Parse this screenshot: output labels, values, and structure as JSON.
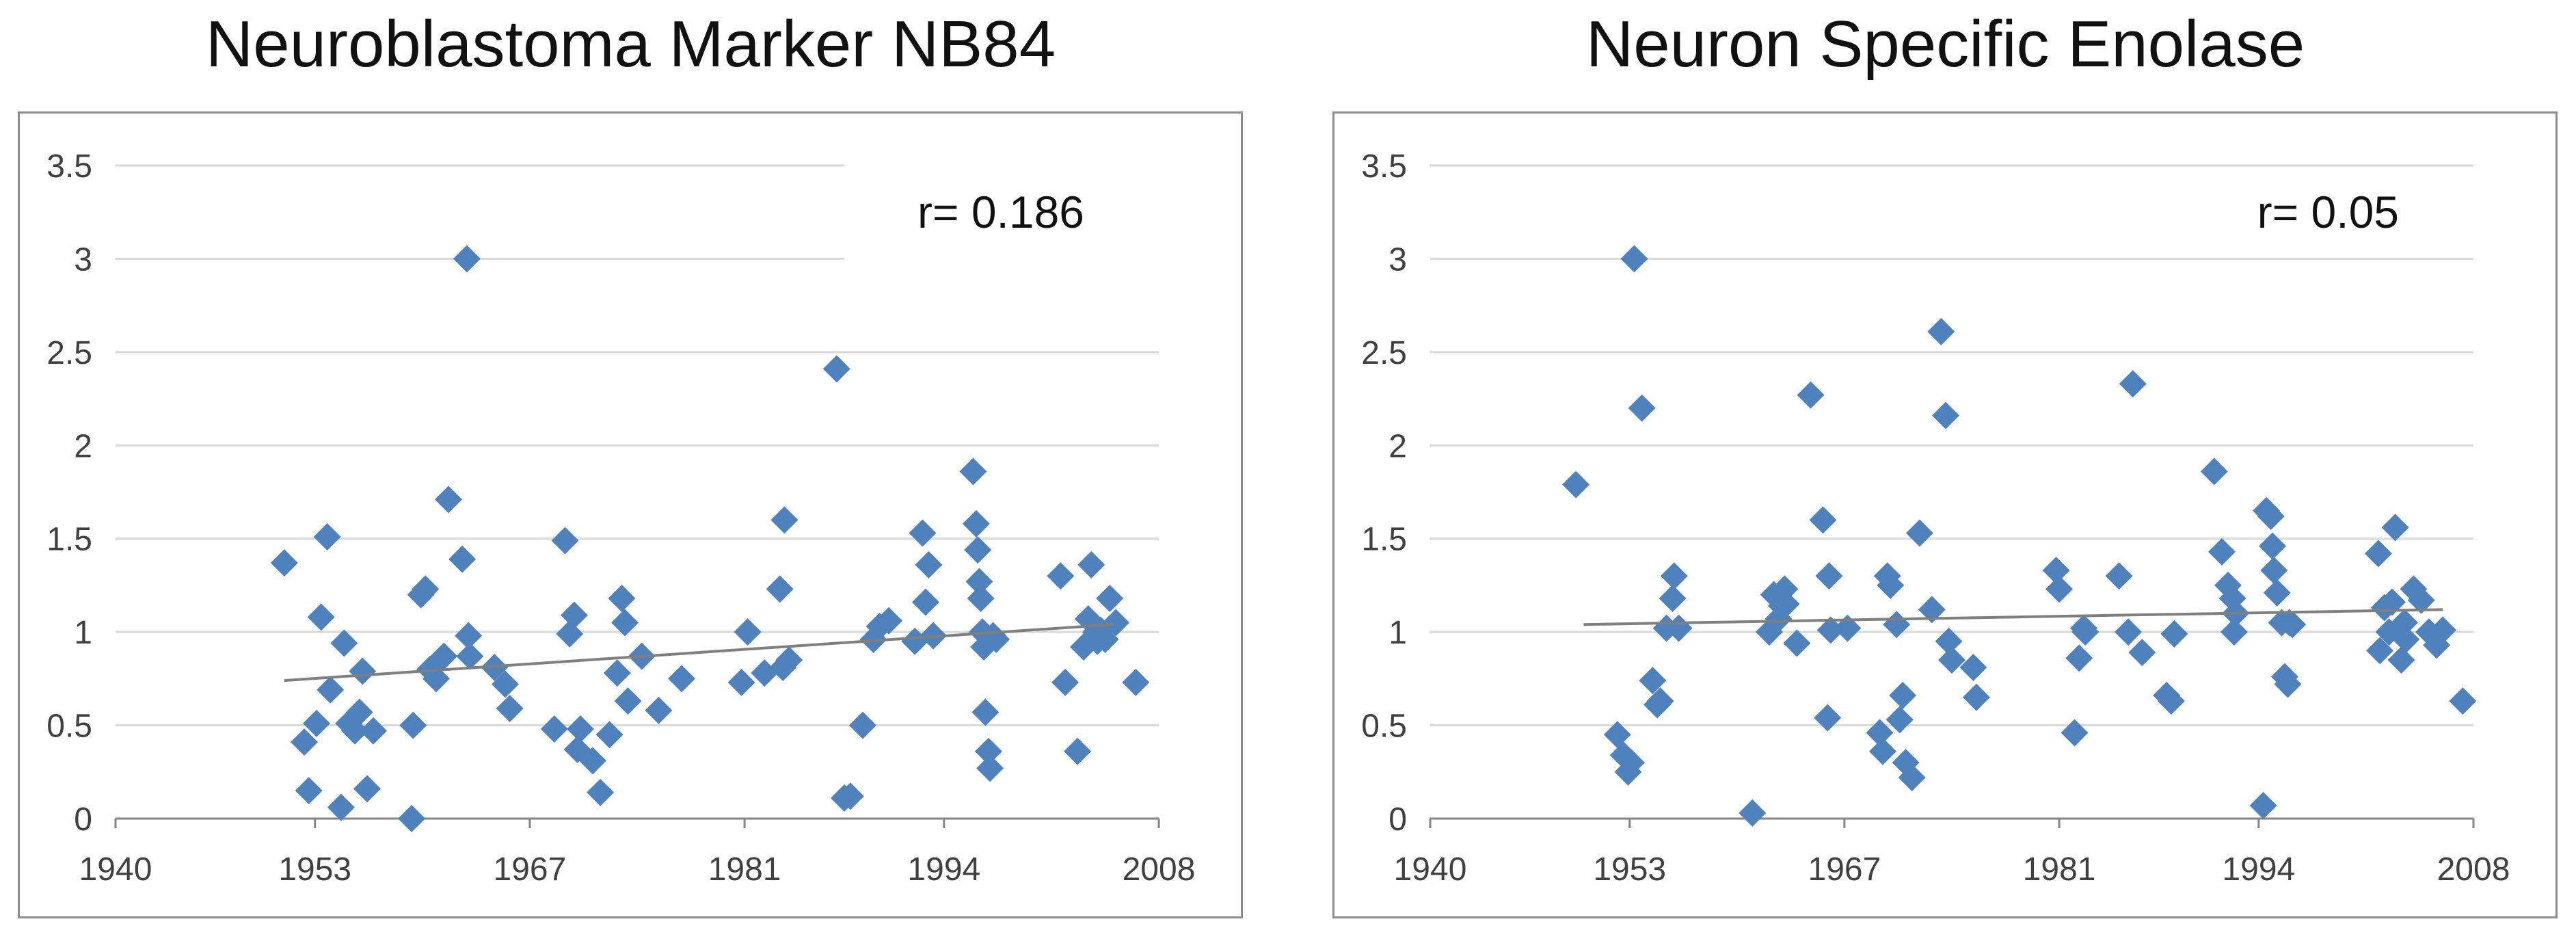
{
  "chart_data": [
    {
      "type": "scatter",
      "title": "Neuroblastoma Marker NB84",
      "annotation": "r= 0.186",
      "xlim": [
        1940,
        2008
      ],
      "ylim": [
        0,
        3.5
      ],
      "xticks": [
        "1940",
        "1953",
        "1967",
        "1981",
        "1994",
        "2008"
      ],
      "yticks": [
        "0",
        "0.5",
        "1",
        "1.5",
        "2",
        "2.5",
        "3",
        "3.5"
      ],
      "trendline": {
        "x": [
          1951,
          2005
        ],
        "y": [
          0.74,
          1.04
        ]
      },
      "marker_color": "#4f81bd",
      "line_color": "#7f7f7f",
      "x": [
        1951.0,
        1952.3,
        1952.6,
        1953.1,
        1953.4,
        1953.8,
        1954.0,
        1954.7,
        1954.9,
        1955.2,
        1955.6,
        1955.9,
        1956.1,
        1956.4,
        1956.8,
        1959.3,
        1959.4,
        1959.9,
        1960.2,
        1960.5,
        1960.9,
        1961.4,
        1961.7,
        1962.6,
        1962.9,
        1963.0,
        1963.1,
        1964.7,
        1965.4,
        1965.7,
        1968.6,
        1969.3,
        1969.6,
        1969.9,
        1970.1,
        1970.3,
        1971.1,
        1971.6,
        1972.2,
        1972.7,
        1973.0,
        1973.2,
        1973.4,
        1974.3,
        1975.4,
        1976.9,
        1980.8,
        1981.2,
        1982.3,
        1983.3,
        1983.5,
        1983.6,
        1983.9,
        1987.0,
        1987.5,
        1987.9,
        1988.7,
        1989.4,
        1989.8,
        1990.4,
        1992.1,
        1992.6,
        1992.8,
        1993.0,
        1993.3,
        1995.9,
        1996.1,
        1996.2,
        1996.3,
        1996.4,
        1996.5,
        1996.6,
        1996.7,
        1996.9,
        1997.0,
        1997.2,
        1997.4,
        2001.6,
        2001.9,
        2002.7,
        2003.1,
        2003.4,
        2003.6,
        2003.9,
        2004.0,
        2004.2,
        2004.5,
        2004.8,
        2005.2,
        2006.5
      ],
      "y": [
        1.37,
        0.41,
        0.15,
        0.51,
        1.08,
        1.51,
        0.69,
        0.06,
        0.94,
        0.51,
        0.47,
        0.57,
        0.79,
        0.16,
        0.47,
        0.0,
        0.5,
        1.2,
        1.23,
        0.8,
        0.75,
        0.87,
        1.71,
        1.39,
        3.0,
        0.98,
        0.87,
        0.81,
        0.72,
        0.59,
        0.48,
        1.49,
        0.99,
        1.09,
        0.37,
        0.48,
        0.31,
        0.14,
        0.45,
        0.78,
        1.18,
        1.05,
        0.63,
        0.87,
        0.58,
        0.75,
        0.73,
        1.0,
        0.78,
        1.23,
        0.81,
        1.6,
        0.85,
        2.41,
        0.11,
        0.12,
        0.5,
        0.96,
        1.03,
        1.06,
        0.95,
        1.53,
        1.16,
        1.36,
        0.98,
        1.86,
        1.58,
        1.44,
        1.27,
        1.18,
        1.0,
        0.92,
        0.57,
        0.36,
        0.27,
        0.98,
        0.96,
        1.3,
        0.73,
        0.36,
        0.92,
        1.07,
        1.36,
        1.0,
        0.95,
        1.01,
        0.96,
        1.18,
        1.05,
        0.73
      ]
    },
    {
      "type": "scatter",
      "title": "Neuron Specific Enolase",
      "annotation": "r= 0.05",
      "xlim": [
        1940,
        2008
      ],
      "ylim": [
        0,
        3.5
      ],
      "xticks": [
        "1940",
        "1953",
        "1967",
        "1981",
        "1994",
        "2008"
      ],
      "yticks": [
        "0",
        "0.5",
        "1",
        "1.5",
        "2",
        "2.5",
        "3",
        "3.5"
      ],
      "trendline": {
        "x": [
          1950,
          2006
        ],
        "y": [
          1.04,
          1.12
        ]
      },
      "marker_color": "#4f81bd",
      "line_color": "#7f7f7f",
      "x": [
        1949.5,
        1952.2,
        1952.6,
        1952.9,
        1953.1,
        1953.3,
        1953.8,
        1954.5,
        1954.8,
        1955.0,
        1955.4,
        1955.8,
        1955.9,
        1956.2,
        1961.0,
        1962.1,
        1962.4,
        1962.7,
        1962.9,
        1963.1,
        1963.2,
        1963.9,
        1964.8,
        1965.6,
        1965.9,
        1966.0,
        1966.1,
        1967.2,
        1969.3,
        1969.5,
        1969.8,
        1970.0,
        1970.4,
        1970.6,
        1970.8,
        1971.0,
        1971.4,
        1971.9,
        1972.7,
        1973.3,
        1973.6,
        1973.8,
        1974.0,
        1975.4,
        1975.6,
        1980.8,
        1981.0,
        1982.0,
        1982.3,
        1982.6,
        1982.7,
        1984.9,
        1985.5,
        1985.8,
        1986.4,
        1988.0,
        1988.3,
        1988.5,
        1991.1,
        1991.6,
        1992.0,
        1992.3,
        1992.4,
        1992.5,
        1994.3,
        1994.5,
        1994.8,
        1994.9,
        1995.0,
        1995.2,
        1995.5,
        1995.7,
        1995.9,
        1996.0,
        1996.2,
        2001.8,
        2001.9,
        2002.2,
        2002.5,
        2002.7,
        2002.9,
        2003.3,
        2003.5,
        2003.6,
        2004.1,
        2004.6,
        2005.1,
        2005.6,
        2006.0,
        2007.3
      ],
      "y": [
        1.79,
        0.45,
        0.34,
        0.25,
        0.3,
        3.0,
        2.2,
        0.74,
        0.61,
        0.63,
        1.02,
        1.18,
        1.3,
        1.02,
        0.03,
        1.0,
        1.2,
        1.07,
        1.14,
        1.23,
        1.15,
        0.94,
        2.27,
        1.6,
        0.54,
        1.3,
        1.01,
        1.02,
        0.46,
        0.36,
        1.3,
        1.25,
        1.04,
        0.53,
        0.66,
        0.3,
        0.22,
        1.53,
        1.12,
        2.61,
        2.16,
        0.95,
        0.85,
        0.81,
        0.65,
        1.33,
        1.23,
        0.46,
        0.86,
        1.02,
        1.0,
        1.3,
        1.0,
        2.33,
        0.89,
        0.66,
        0.63,
        0.99,
        1.86,
        1.43,
        1.25,
        1.18,
        1.0,
        1.1,
        0.07,
        1.65,
        1.62,
        1.46,
        1.33,
        1.21,
        1.05,
        0.76,
        0.72,
        1.05,
        1.04,
        1.42,
        0.9,
        1.13,
        1.0,
        1.16,
        1.56,
        0.85,
        1.05,
        0.96,
        1.23,
        1.17,
        1.0,
        0.93,
        1.01,
        0.63
      ]
    }
  ]
}
